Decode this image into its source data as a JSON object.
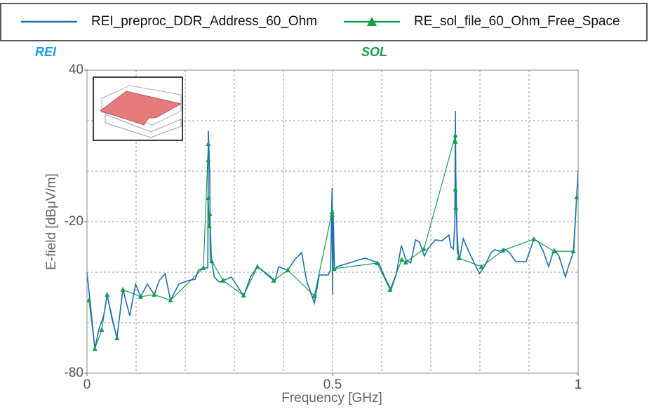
{
  "chart_data": {
    "type": "line",
    "xlabel": "Frequency [GHz]",
    "ylabel": "E-field [dBμV/m]",
    "annotations": [
      {
        "text": "REI",
        "color": "#1aa0e6"
      },
      {
        "text": "SOL",
        "color": "#12a04a"
      }
    ],
    "xlim": [
      0,
      1
    ],
    "xticks": [
      0,
      0.5,
      1
    ],
    "xgrid": [
      0.1,
      0.2,
      0.3,
      0.4,
      0.5,
      0.6,
      0.7,
      0.8,
      0.9
    ],
    "ylim": [
      -80,
      40
    ],
    "yticks": [
      40,
      -20,
      -80
    ],
    "ygrid": [
      20,
      0,
      -20,
      -40,
      -60
    ],
    "grid": true,
    "legend": "top",
    "series": [
      {
        "name": "REI_preproc_DDR_Address_60_Ohm",
        "color": "#1f6fb2",
        "marker": "none",
        "x": [
          0,
          0.006,
          0.016,
          0.024,
          0.034,
          0.041,
          0.051,
          0.061,
          0.073,
          0.087,
          0.099,
          0.109,
          0.123,
          0.137,
          0.147,
          0.159,
          0.17,
          0.187,
          0.206,
          0.22,
          0.227,
          0.237,
          0.246,
          0.247,
          0.25,
          0.251,
          0.254,
          0.259,
          0.269,
          0.277,
          0.294,
          0.319,
          0.333,
          0.347,
          0.366,
          0.383,
          0.39,
          0.409,
          0.423,
          0.437,
          0.447,
          0.463,
          0.473,
          0.491,
          0.496,
          0.499,
          0.5,
          0.501,
          0.504,
          0.509,
          0.566,
          0.594,
          0.606,
          0.619,
          0.63,
          0.64,
          0.649,
          0.659,
          0.669,
          0.677,
          0.687,
          0.694,
          0.709,
          0.723,
          0.737,
          0.741,
          0.746,
          0.749,
          0.75,
          0.751,
          0.754,
          0.759,
          0.766,
          0.777,
          0.799,
          0.809,
          0.823,
          0.83,
          0.84,
          0.849,
          0.86,
          0.873,
          0.894,
          0.91,
          0.92,
          0.93,
          0.94,
          0.951,
          0.961,
          0.974,
          0.98,
          0.991,
          0.997,
          1
        ],
        "values": [
          -40,
          -51.1,
          -70.3,
          -62.8,
          -57.2,
          -48.9,
          -58.6,
          -66.1,
          -46.7,
          -57.2,
          -44.7,
          -49.7,
          -44.7,
          -48.9,
          -43.3,
          -40.6,
          -51.1,
          -44.7,
          -43.3,
          -42.8,
          -39.2,
          -38.3,
          -38.3,
          16.1,
          -1.7,
          -35,
          -35.6,
          -41.9,
          -43.9,
          -43.3,
          -41.9,
          -49.4,
          -41.9,
          -37.8,
          -40.6,
          -43.3,
          -37.8,
          -39.2,
          -35,
          -32.2,
          -43.3,
          -52.2,
          -41.1,
          -41.1,
          -39.2,
          -6.7,
          -48.9,
          -15.6,
          -39.2,
          -37.8,
          -34.4,
          -36.4,
          -41.9,
          -46.9,
          -40.6,
          -29.4,
          -35,
          -36.4,
          -27.2,
          -28.1,
          -33.6,
          -30.8,
          -27.2,
          -27.5,
          -25.3,
          -30,
          -30.8,
          -21.1,
          23.9,
          -1.7,
          -32.2,
          -34.4,
          -26.7,
          -31.7,
          -40.6,
          -37.8,
          -32.2,
          -31.1,
          -31.7,
          -30.8,
          -32.2,
          -35.8,
          -35.8,
          -26.9,
          -28.1,
          -32.2,
          -37.8,
          -30.8,
          -33.6,
          -41.9,
          -37.8,
          -31.7,
          -10,
          0.3
        ]
      },
      {
        "name": "RE_sol_file_60_Ohm_Free_Space",
        "color": "#12a04a",
        "marker": "triangle",
        "x": [
          0.004,
          0.016,
          0.03,
          0.041,
          0.061,
          0.073,
          0.109,
          0.137,
          0.17,
          0.237,
          0.247,
          0.247,
          0.247,
          0.249,
          0.25,
          0.254,
          0.277,
          0.319,
          0.347,
          0.38,
          0.409,
          0.463,
          0.499,
          0.499,
          0.503,
          0.591,
          0.617,
          0.641,
          0.649,
          0.686,
          0.75,
          0.75,
          0.75,
          0.751,
          0.757,
          0.803,
          0.847,
          0.91,
          0.951,
          0.99,
          0.997
        ],
        "values": [
          -51.1,
          -70.3,
          -62.8,
          -48.9,
          -66.1,
          -46.9,
          -49.7,
          -48.9,
          -51.1,
          -38.3,
          10.8,
          4.4,
          -10.6,
          -21.7,
          -16.9,
          -35.6,
          -43.3,
          -49.2,
          -37.8,
          -43.3,
          -39.2,
          -49.4,
          -16.1,
          -17.2,
          -38.6,
          -36.4,
          -46.9,
          -35,
          -36.1,
          -30.8,
          14.2,
          11.7,
          -7.2,
          -14.4,
          -34.4,
          -37.8,
          -31.4,
          -26.9,
          -31.7,
          -31.7,
          -10.3
        ]
      }
    ]
  }
}
